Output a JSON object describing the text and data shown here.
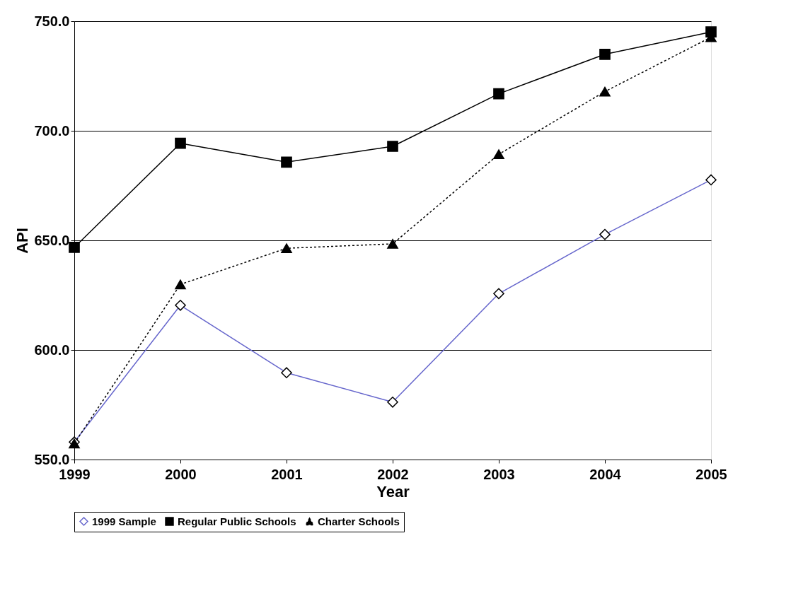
{
  "chart_data": {
    "type": "line",
    "xlabel": "Year",
    "ylabel": "API",
    "categories": [
      "1999",
      "2000",
      "2001",
      "2002",
      "2003",
      "2004",
      "2005"
    ],
    "series": [
      {
        "name": "1999 Sample",
        "color": "#6666cc",
        "marker": "diamond",
        "line_style": "solid",
        "values": [
          558,
          620.4,
          589.6,
          576.2,
          625.7,
          652.7,
          677.6
        ]
      },
      {
        "name": "Regular Public Schools",
        "color": "#000000",
        "marker": "square",
        "line_style": "solid",
        "values": [
          646.8,
          694.3,
          685.7,
          692.9,
          716.9,
          734.9,
          745.1
        ]
      },
      {
        "name": "Charter Schools",
        "color": "#000000",
        "marker": "triangle",
        "line_style": "dotted",
        "values": [
          557.3,
          629.9,
          646.4,
          648.4,
          689.3,
          717.9,
          742.7
        ]
      }
    ],
    "ylim": [
      550,
      750
    ],
    "yticks": [
      {
        "value": 550,
        "label": "550.0"
      },
      {
        "value": 600,
        "label": "600.0"
      },
      {
        "value": 650,
        "label": "650.0"
      },
      {
        "value": 700,
        "label": "700.0"
      },
      {
        "value": 750,
        "label": "750.0"
      }
    ],
    "grid": "y",
    "legend": "bottom"
  }
}
